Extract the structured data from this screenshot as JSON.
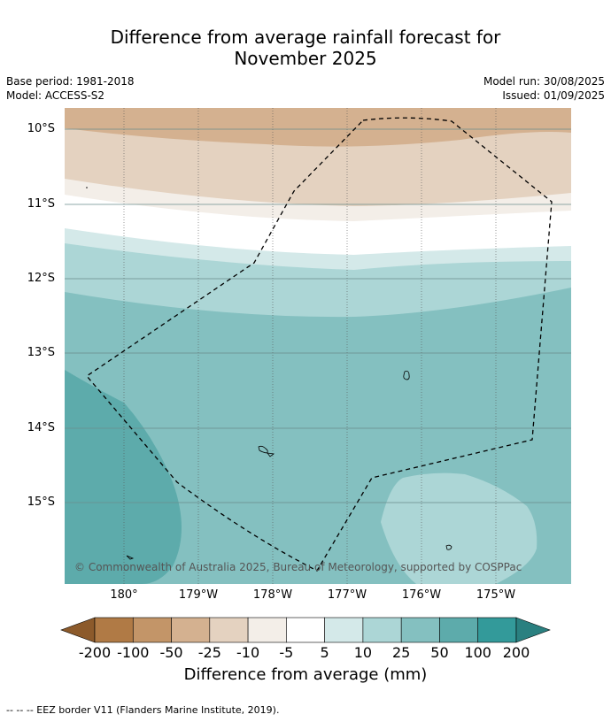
{
  "title_line1": "Difference from average rainfall forecast for",
  "title_line2": "November 2025",
  "meta": {
    "base_period": "Base period: 1981-2018",
    "model": "Model: ACCESS-S2",
    "model_run": "Model run: 30/08/2025",
    "issued": "Issued: 01/09/2025"
  },
  "map": {
    "lat_ticks": [
      "10°S",
      "11°S",
      "12°S",
      "13°S",
      "14°S",
      "15°S"
    ],
    "lon_ticks": [
      "180°",
      "179°W",
      "178°W",
      "177°W",
      "176°W",
      "175°W"
    ],
    "copyright": "© Commonwealth of Australia 2025, Bureau of Meteorology, supported by COSPPac"
  },
  "colorbar": {
    "ticks": [
      "-200",
      "-100",
      "-50",
      "-25",
      "-10",
      "-5",
      "5",
      "10",
      "25",
      "50",
      "100",
      "200"
    ],
    "colors": [
      "#8c5a2b",
      "#b07a45",
      "#c39568",
      "#d4b190",
      "#e4d2c0",
      "#f3eee8",
      "#ffffff",
      "#d4e9e9",
      "#acd6d6",
      "#84c0c0",
      "#5dabab",
      "#339a9a",
      "#2a8080"
    ],
    "label": "Difference from average (mm)"
  },
  "footnote": "--  --  -- EEZ border V11 (Flanders Marine Institute, 2019)."
}
